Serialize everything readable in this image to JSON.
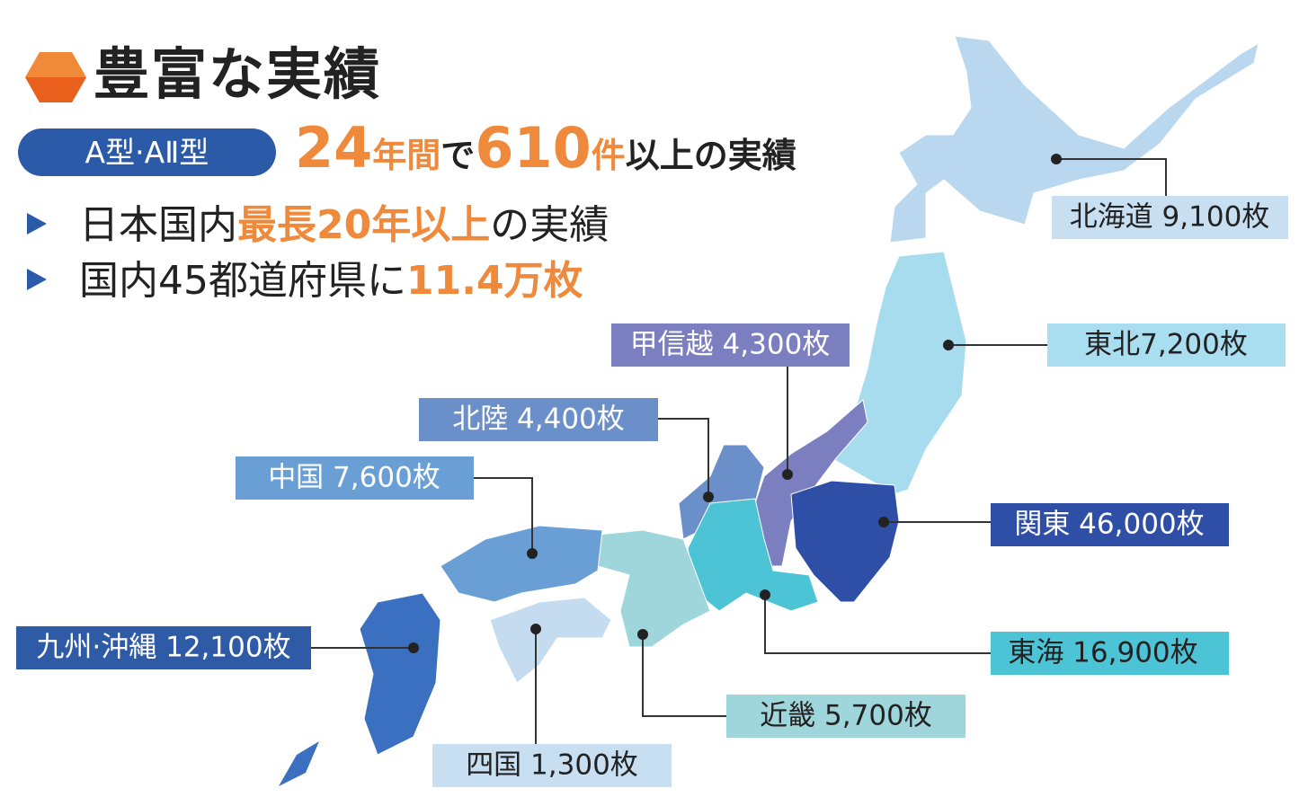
{
  "header": {
    "title": "豊富な実績",
    "badge": "A型·AⅡ型",
    "headline": [
      "24",
      "年間",
      "で",
      "610",
      "件",
      "以上の実績"
    ]
  },
  "bullets": [
    [
      "日本国内",
      "最長20年以上",
      "の実績"
    ],
    [
      "国内45都道府県に",
      "11.4万枚"
    ]
  ],
  "regions": [
    {
      "label": "北海道 9,100枚"
    },
    {
      "label": "東北7,200枚"
    },
    {
      "label": "甲信越 4,300枚"
    },
    {
      "label": "北陸 4,400枚"
    },
    {
      "label": "中国 7,600枚"
    },
    {
      "label": "関東 46,000枚"
    },
    {
      "label": "九州·沖縄 12,100枚"
    },
    {
      "label": "東海 16,900枚"
    },
    {
      "label": "近畿 5,700枚"
    },
    {
      "label": "四国 1,300枚"
    }
  ]
}
